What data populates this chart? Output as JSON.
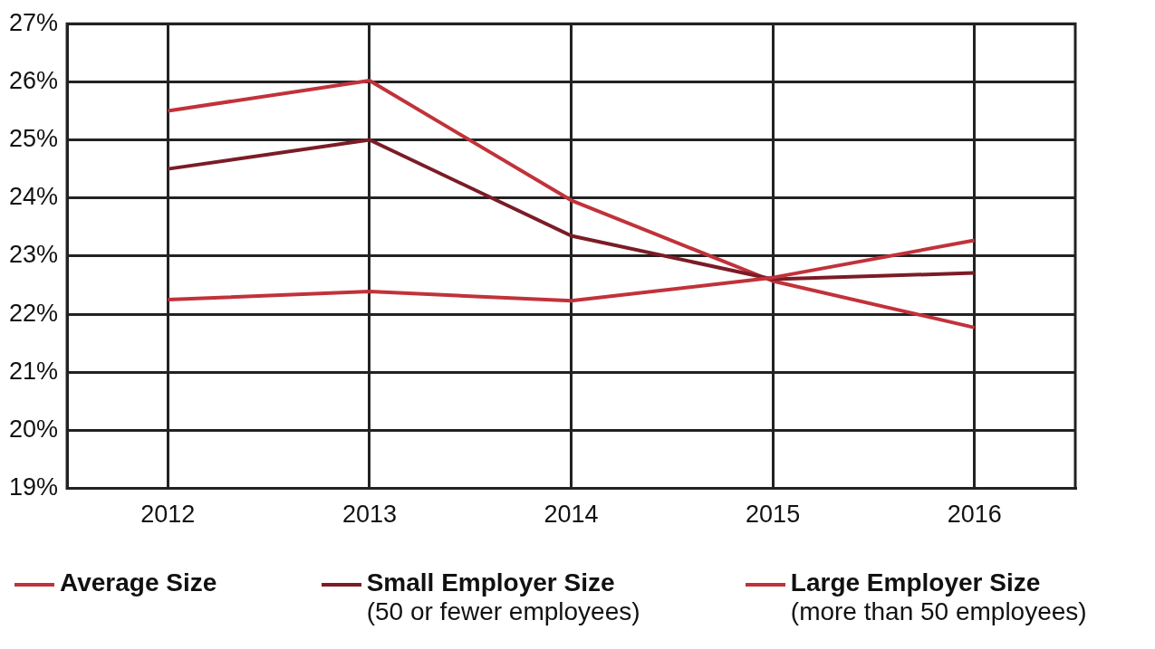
{
  "chart_data": {
    "type": "line",
    "categories": [
      "2012",
      "2013",
      "2014",
      "2015",
      "2016"
    ],
    "series": [
      {
        "name": "Average Size",
        "color": "#c1323a",
        "values": [
          22.25,
          22.39,
          22.23,
          22.63,
          23.27
        ]
      },
      {
        "name": "Small Employer Size\n(50 or fewer employees)",
        "color": "#7b1c26",
        "values": [
          24.5,
          25.0,
          23.35,
          22.6,
          22.71
        ]
      },
      {
        "name": "Large Employer Size\n(more than 50 employees)",
        "color": "#c1323a",
        "values": [
          25.5,
          26.02,
          23.96,
          22.57,
          21.77
        ]
      }
    ],
    "ylim": [
      19,
      27
    ],
    "yticks": [
      {
        "value": 19,
        "label": "19%"
      },
      {
        "value": 20,
        "label": "20%"
      },
      {
        "value": 21,
        "label": "21%"
      },
      {
        "value": 22,
        "label": "22%"
      },
      {
        "value": 23,
        "label": "23%"
      },
      {
        "value": 24,
        "label": "24%"
      },
      {
        "value": 25,
        "label": "25%"
      },
      {
        "value": 26,
        "label": "26%"
      },
      {
        "value": 27,
        "label": "27%"
      }
    ],
    "grid": true,
    "legend": "bottom",
    "marker": "none",
    "line_style": "solid"
  }
}
